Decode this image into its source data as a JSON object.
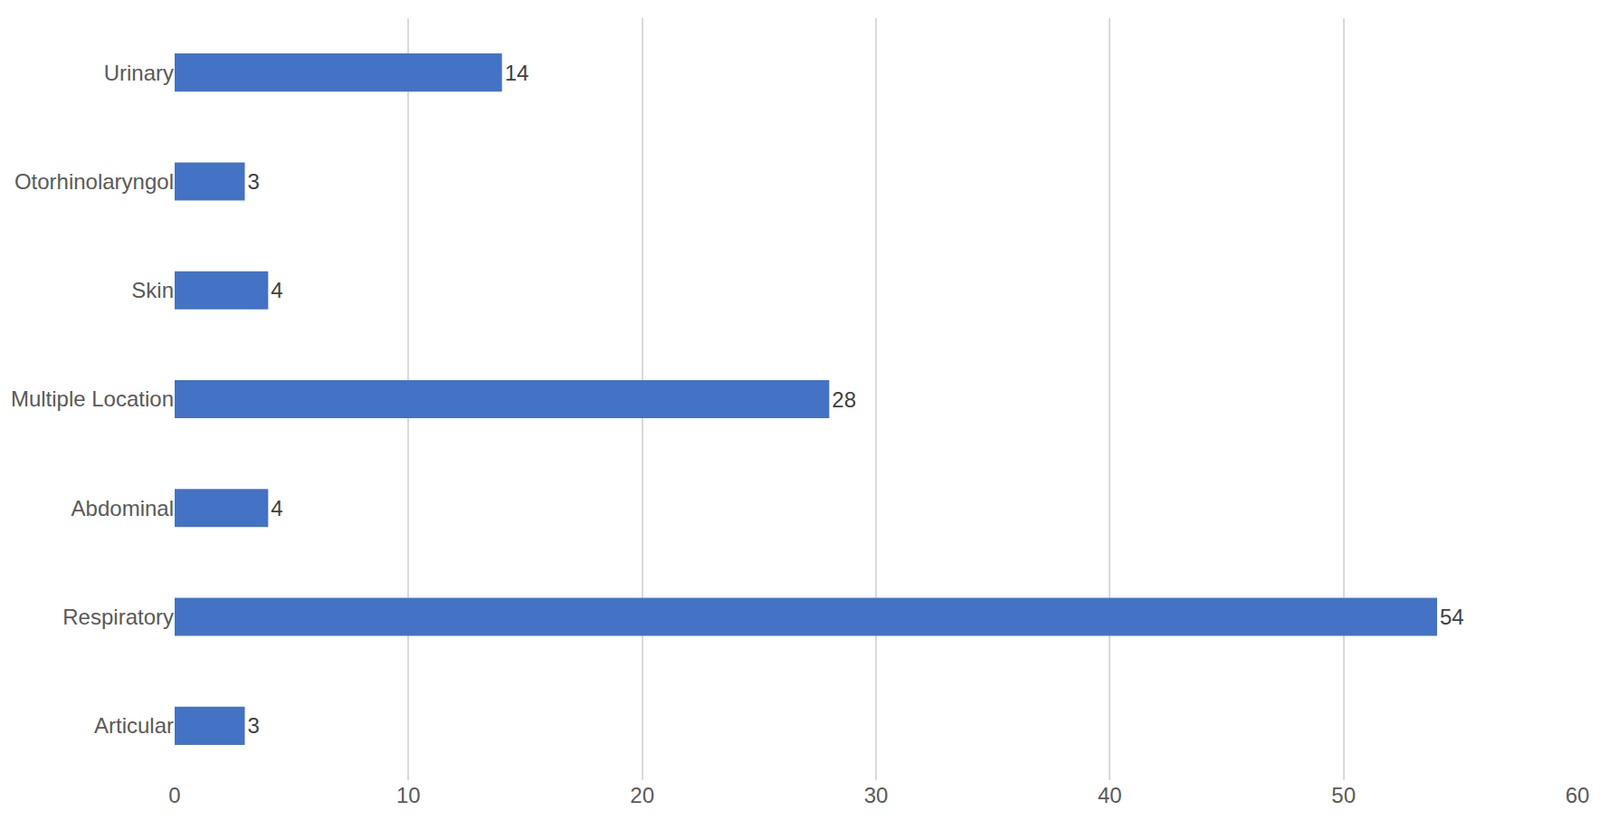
{
  "chart_data": {
    "type": "bar",
    "orientation": "horizontal",
    "categories": [
      "Articular",
      "Respiratory",
      "Abdominal",
      "Multiple Location",
      "Skin",
      "Otorhinolaryngol",
      "Urinary"
    ],
    "values": [
      3,
      54,
      4,
      28,
      4,
      3,
      14
    ],
    "color": "#4472c4",
    "xlim": [
      0,
      60
    ],
    "xticks": [
      0,
      10,
      20,
      30,
      40,
      50,
      60
    ],
    "grid": true,
    "data_labels": true
  }
}
